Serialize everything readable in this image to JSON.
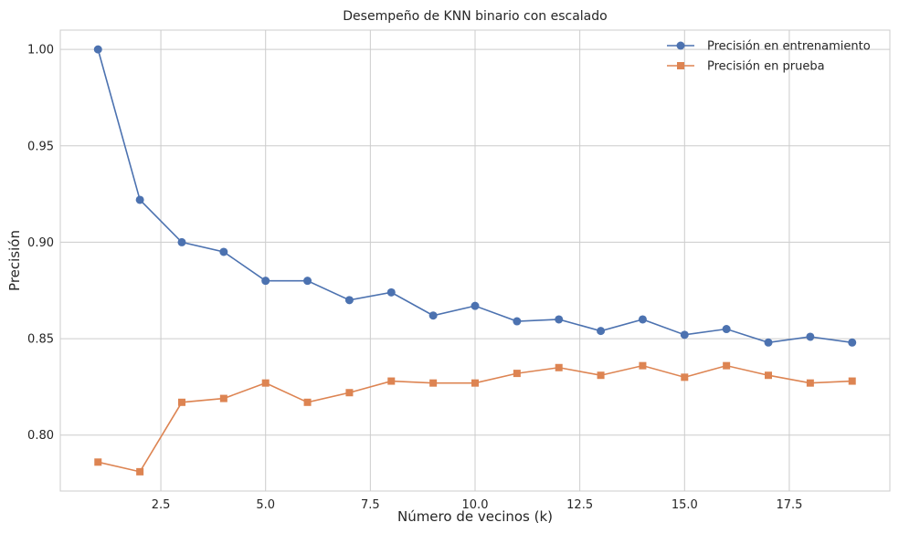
{
  "chart_data": {
    "type": "line",
    "title": "Desempeño de KNN binario con escalado",
    "xlabel": "Número de vecinos (k)",
    "ylabel": "Precisión",
    "x": [
      1,
      2,
      3,
      4,
      5,
      6,
      7,
      8,
      9,
      10,
      11,
      12,
      13,
      14,
      15,
      16,
      17,
      18,
      19
    ],
    "xlim": [
      0.1,
      19.9
    ],
    "ylim": [
      0.771,
      1.01
    ],
    "xticks": [
      2.5,
      5.0,
      7.5,
      10.0,
      12.5,
      15.0,
      17.5
    ],
    "xtick_labels": [
      "2.5",
      "5.0",
      "7.5",
      "10.0",
      "12.5",
      "15.0",
      "17.5"
    ],
    "yticks": [
      0.8,
      0.85,
      0.9,
      0.95,
      1.0
    ],
    "ytick_labels": [
      "0.80",
      "0.85",
      "0.90",
      "0.95",
      "1.00"
    ],
    "grid": true,
    "legend_position": "top-right",
    "series": [
      {
        "name": "Precisión en entrenamiento",
        "marker": "circle",
        "color": "#4c72b0",
        "values": [
          1.0,
          0.922,
          0.9,
          0.895,
          0.88,
          0.88,
          0.87,
          0.874,
          0.862,
          0.867,
          0.859,
          0.86,
          0.854,
          0.86,
          0.852,
          0.855,
          0.848,
          0.851,
          0.848
        ]
      },
      {
        "name": "Precisión en prueba",
        "marker": "square",
        "color": "#dd8452",
        "values": [
          0.786,
          0.781,
          0.817,
          0.819,
          0.827,
          0.817,
          0.822,
          0.828,
          0.827,
          0.827,
          0.832,
          0.835,
          0.831,
          0.836,
          0.83,
          0.836,
          0.831,
          0.827,
          0.828
        ]
      }
    ]
  }
}
